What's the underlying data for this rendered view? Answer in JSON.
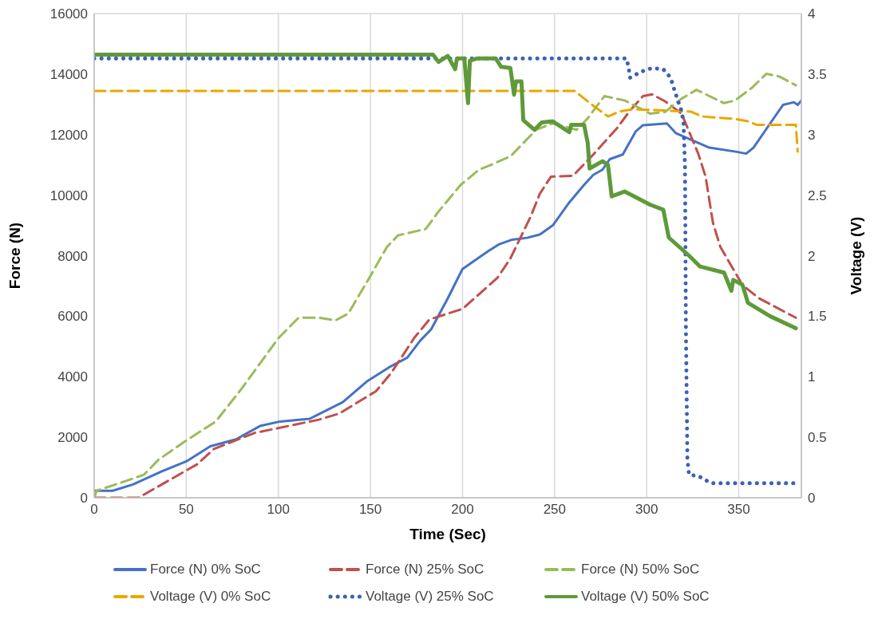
{
  "chart_data": {
    "type": "line",
    "xlabel": "Time (Sec)",
    "ylabel": "Force (N)",
    "y2label": "Voltage (V)",
    "xlim": [
      0,
      384
    ],
    "xticks": [
      0,
      50,
      100,
      150,
      200,
      250,
      300,
      350
    ],
    "ylim": [
      0,
      16000
    ],
    "yticks": [
      0,
      2000,
      4000,
      6000,
      8000,
      10000,
      12000,
      14000,
      16000
    ],
    "y2lim": [
      0,
      4
    ],
    "y2ticks": [
      0,
      0.5,
      1,
      1.5,
      2,
      2.5,
      3,
      3.5,
      4
    ],
    "grid": true,
    "legend": "bottom",
    "marker": "none",
    "series": [
      {
        "name": "Force (N) 0% SoC",
        "color": "#4472c4",
        "line_style": "solid",
        "x": [
          0,
          10,
          21,
          37,
          50,
          63,
          77,
          90,
          101,
          117,
          121,
          135,
          148,
          161,
          170,
          177,
          183,
          192,
          200,
          209,
          214,
          220,
          227,
          235,
          242,
          249,
          258,
          266,
          271,
          276,
          280,
          287,
          294,
          298,
          311,
          316,
          334,
          349,
          354,
          358,
          369,
          374,
          380,
          382,
          384
        ],
        "values": [
          230,
          230,
          440,
          880,
          1200,
          1700,
          1930,
          2370,
          2520,
          2610,
          2730,
          3160,
          3840,
          4340,
          4630,
          5190,
          5570,
          6590,
          7560,
          7940,
          8150,
          8380,
          8530,
          8590,
          8700,
          9000,
          9760,
          10340,
          10670,
          10840,
          11190,
          11340,
          12100,
          12310,
          12370,
          12040,
          11570,
          11430,
          11370,
          11570,
          12540,
          12980,
          13070,
          12980,
          13130
        ]
      },
      {
        "name": "Force (N) 25% SoC",
        "color": "#c0504d",
        "line_style": "dashed",
        "x": [
          0,
          24,
          35,
          56,
          65,
          87,
          99,
          122,
          133,
          153,
          161,
          174,
          182,
          200,
          219,
          226,
          237,
          242,
          248,
          260,
          271,
          284,
          291,
          298,
          303,
          310,
          319,
          328,
          332,
          336,
          340,
          352,
          361,
          381
        ],
        "values": [
          0,
          0,
          380,
          1110,
          1610,
          2140,
          2290,
          2580,
          2780,
          3520,
          4100,
          5300,
          5890,
          6240,
          7270,
          7910,
          9290,
          10050,
          10610,
          10640,
          11340,
          12220,
          12800,
          13270,
          13330,
          13100,
          12690,
          11370,
          10610,
          9080,
          8290,
          7030,
          6590,
          5950
        ]
      },
      {
        "name": "Force (N) 50% SoC",
        "color": "#9bbb59",
        "line_style": "dashed",
        "x": [
          0,
          1.3,
          16,
          27,
          35,
          49,
          66,
          80,
          100,
          111,
          122,
          131,
          138,
          150,
          159,
          165,
          180,
          187,
          199,
          209,
          215,
          226,
          240,
          249,
          262,
          268,
          277,
          288,
          302,
          310,
          319,
          327,
          342,
          348,
          357,
          365,
          372,
          381
        ],
        "values": [
          0,
          230,
          530,
          760,
          1260,
          1850,
          2520,
          3600,
          5270,
          5950,
          5950,
          5860,
          6090,
          7330,
          8290,
          8670,
          8880,
          9460,
          10340,
          10840,
          10990,
          11280,
          12160,
          12370,
          12160,
          12540,
          13270,
          13130,
          12690,
          12750,
          13190,
          13480,
          13040,
          13130,
          13540,
          14010,
          13920,
          13630
        ]
      },
      {
        "name": "Voltage (V) 0% SoC",
        "color": "#e8a800",
        "line_style": "dashed",
        "axis": "y2",
        "x": [
          0,
          261,
          270,
          279,
          285,
          292,
          324,
          330,
          348,
          355,
          360,
          381,
          382
        ],
        "values": [
          3.36,
          3.36,
          3.25,
          3.15,
          3.19,
          3.21,
          3.19,
          3.15,
          3.13,
          3.11,
          3.08,
          3.08,
          2.86
        ]
      },
      {
        "name": "Voltage (V) 25% SoC",
        "color": "#3a62b5",
        "line_style": "dotted",
        "axis": "y2",
        "x": [
          0,
          289,
          290,
          291,
          297,
          303,
          309,
          313,
          315,
          319,
          320,
          320.8,
          321.3,
          322.1,
          323,
          328,
          335,
          348,
          382
        ],
        "values": [
          3.63,
          3.63,
          3.57,
          3.47,
          3.52,
          3.55,
          3.54,
          3.47,
          3.37,
          3.19,
          3.1,
          2.73,
          1.39,
          0.32,
          0.19,
          0.18,
          0.12,
          0.12,
          0.12
        ]
      },
      {
        "name": "Voltage (V) 50% SoC",
        "color": "#5e9a3a",
        "line_style": "solid",
        "axis": "y2",
        "x": [
          0,
          184,
          187,
          192,
          196,
          197,
          201,
          203,
          204,
          208,
          218,
          221,
          226,
          228,
          229,
          232,
          233,
          239,
          243,
          249,
          258,
          259,
          266,
          268,
          269,
          276,
          279,
          281,
          288,
          302,
          309,
          312,
          323,
          329,
          342,
          346,
          347,
          352,
          355,
          367,
          381
        ],
        "values": [
          3.66,
          3.66,
          3.6,
          3.65,
          3.54,
          3.63,
          3.63,
          3.26,
          3.61,
          3.63,
          3.63,
          3.56,
          3.55,
          3.33,
          3.44,
          3.44,
          3.12,
          3.04,
          3.1,
          3.11,
          3.02,
          3.08,
          3.08,
          2.93,
          2.72,
          2.78,
          2.75,
          2.49,
          2.53,
          2.42,
          2.38,
          2.15,
          2,
          1.91,
          1.86,
          1.71,
          1.8,
          1.76,
          1.61,
          1.5,
          1.4
        ]
      }
    ]
  }
}
